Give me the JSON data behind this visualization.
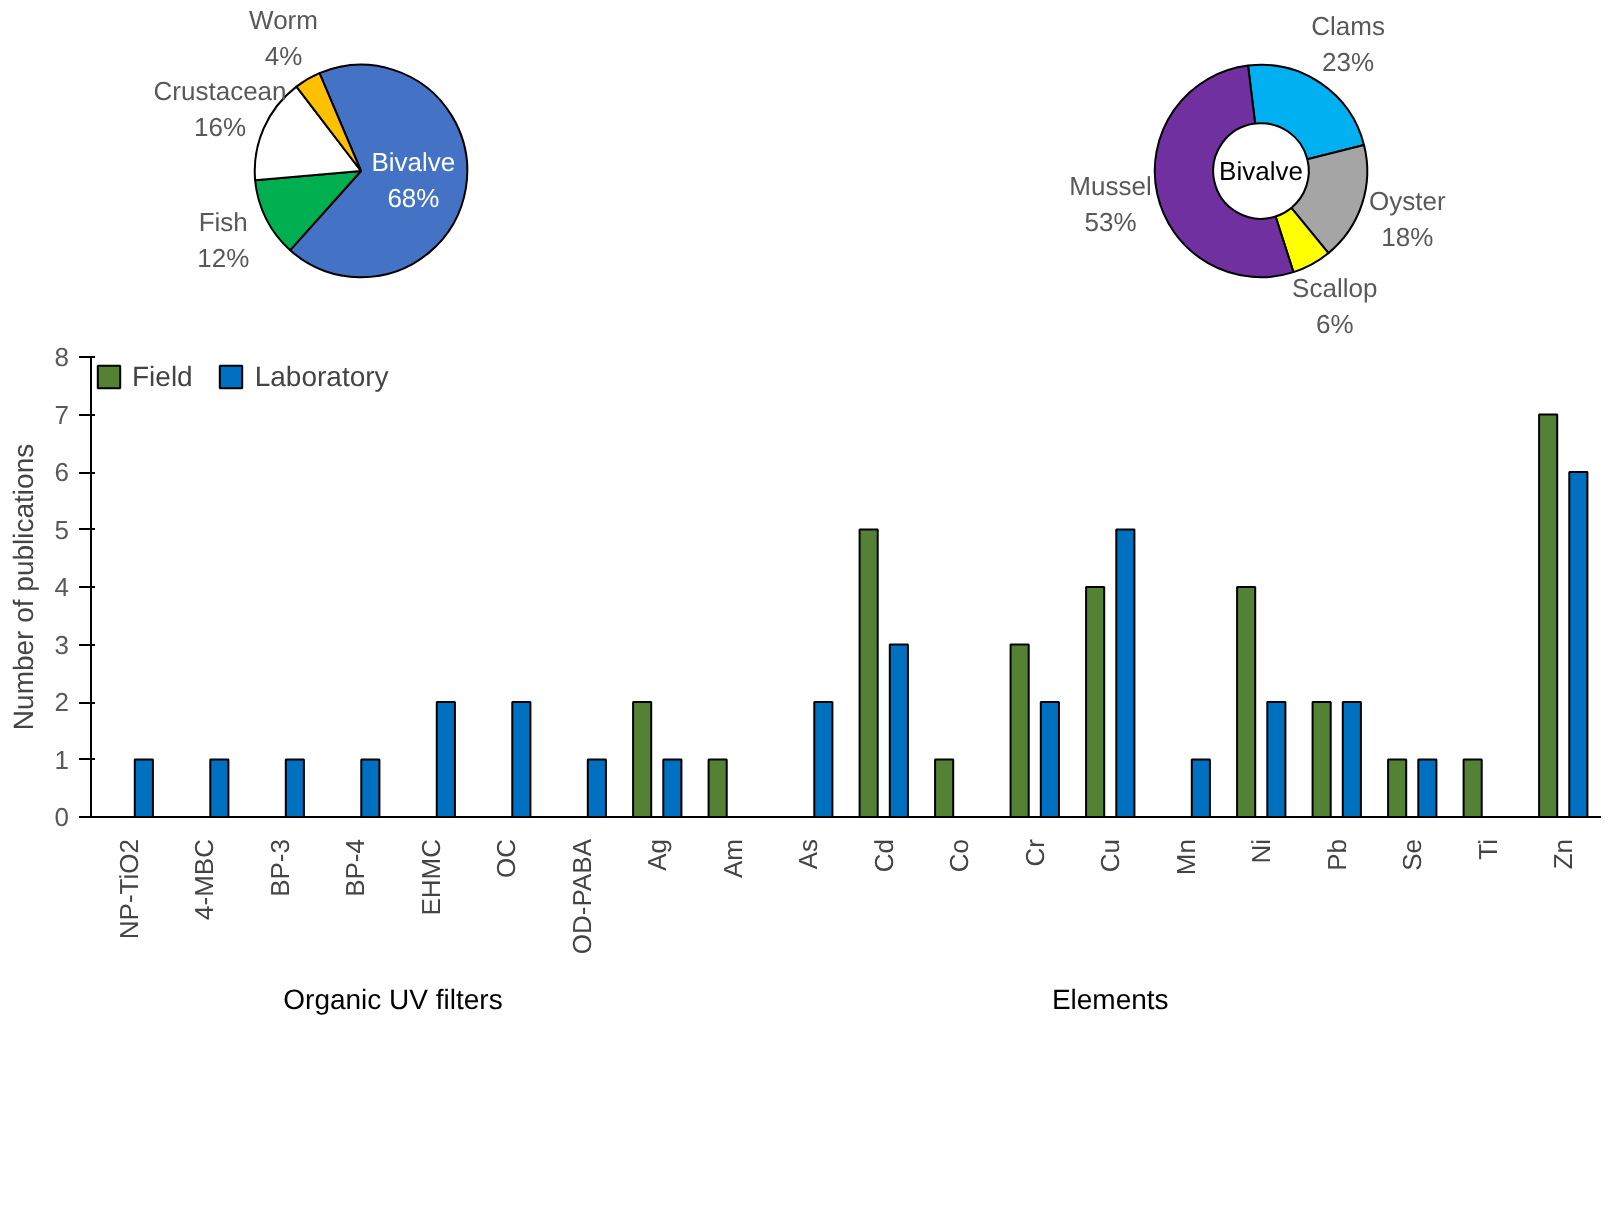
{
  "chart_data": [
    {
      "type": "pie",
      "categories": [
        "Bivalve",
        "Fish",
        "Crustacean",
        "Worm"
      ],
      "values": [
        68,
        12,
        16,
        4
      ],
      "colors": [
        "#4472c4",
        "#00b050",
        "#ffffff",
        "#ffc000"
      ],
      "value_labels": [
        "68%",
        "12%",
        "16%",
        "4%"
      ]
    },
    {
      "type": "donut",
      "categories": [
        "Clams",
        "Oyster",
        "Scallop",
        "Mussel"
      ],
      "values": [
        23,
        18,
        6,
        53
      ],
      "colors": [
        "#00b0f0",
        "#a5a5a5",
        "#ffff00",
        "#7030a0"
      ],
      "value_labels": [
        "23%",
        "18%",
        "6%",
        "53%"
      ],
      "annotations": [
        "Bivalve"
      ]
    },
    {
      "type": "bar",
      "ylabel": "Number of publications",
      "categories": [
        "NP-TiO2",
        "4-MBC",
        "BP-3",
        "BP-4",
        "EHMC",
        "OC",
        "OD-PABA",
        "Ag",
        "Am",
        "As",
        "Cd",
        "Co",
        "Cr",
        "Cu",
        "Mn",
        "Ni",
        "Pb",
        "Se",
        "Ti",
        "Zn"
      ],
      "series": [
        {
          "name": "Field",
          "color": "#548235",
          "values": [
            null,
            null,
            null,
            null,
            null,
            null,
            null,
            2,
            1,
            null,
            5,
            1,
            3,
            4,
            null,
            4,
            2,
            1,
            1,
            7
          ]
        },
        {
          "name": "Laboratory",
          "color": "#0070c0",
          "values": [
            1,
            1,
            1,
            1,
            2,
            2,
            1,
            1,
            null,
            2,
            3,
            null,
            2,
            5,
            1,
            2,
            2,
            1,
            null,
            6
          ]
        }
      ],
      "annotations": [
        "Organic UV filters",
        "Elements"
      ],
      "ylim": [
        0,
        8
      ],
      "yticks": [
        0,
        1,
        2,
        3,
        4,
        5,
        6,
        7,
        8
      ],
      "grid": false,
      "legend": "top left"
    }
  ]
}
